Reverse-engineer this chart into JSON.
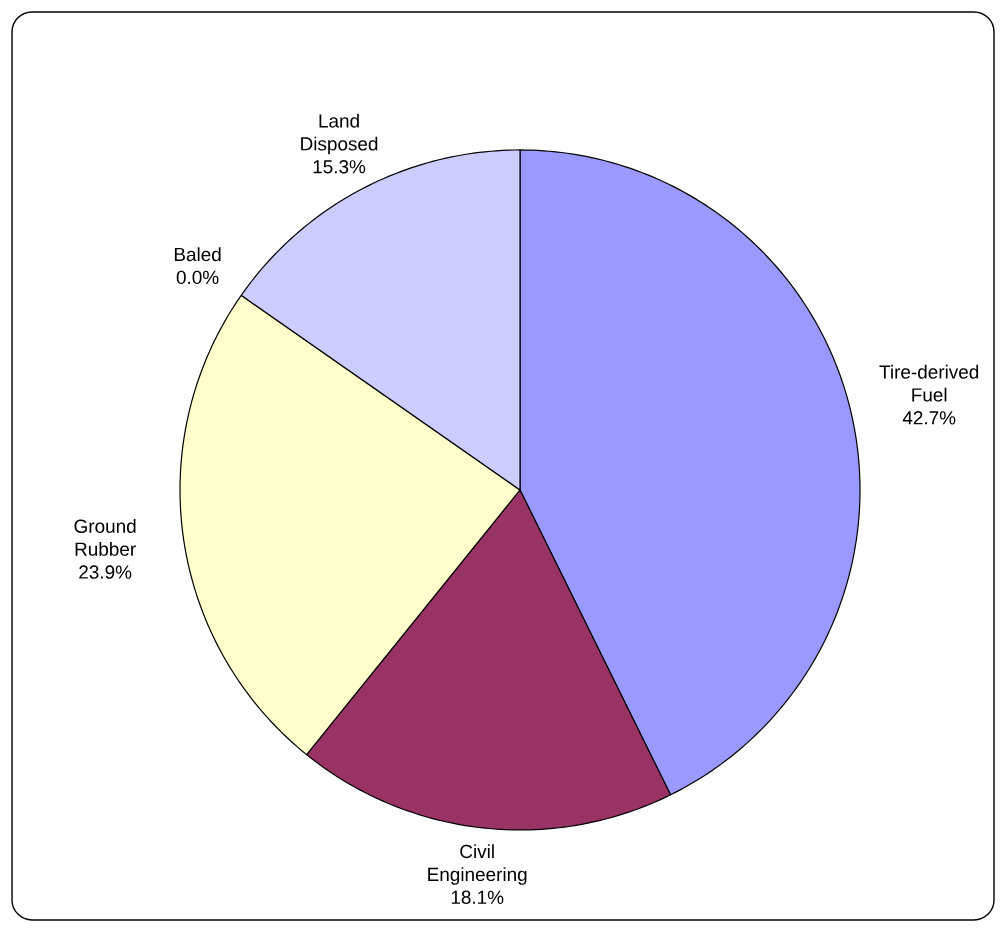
{
  "chart_data": {
    "type": "pie",
    "categories": [
      "Tire-derived Fuel",
      "Civil Engineering",
      "Ground Rubber",
      "Baled",
      "Land Disposed"
    ],
    "values": [
      42.7,
      18.1,
      23.9,
      0.0,
      15.3
    ],
    "value_labels": [
      "42.7%",
      "18.1%",
      "23.9%",
      "0.0%",
      "15.3%"
    ],
    "colors": [
      "#9999ff",
      "#993366",
      "#ffffcc",
      "#ccffff",
      "#ccccff"
    ],
    "legend": false
  }
}
